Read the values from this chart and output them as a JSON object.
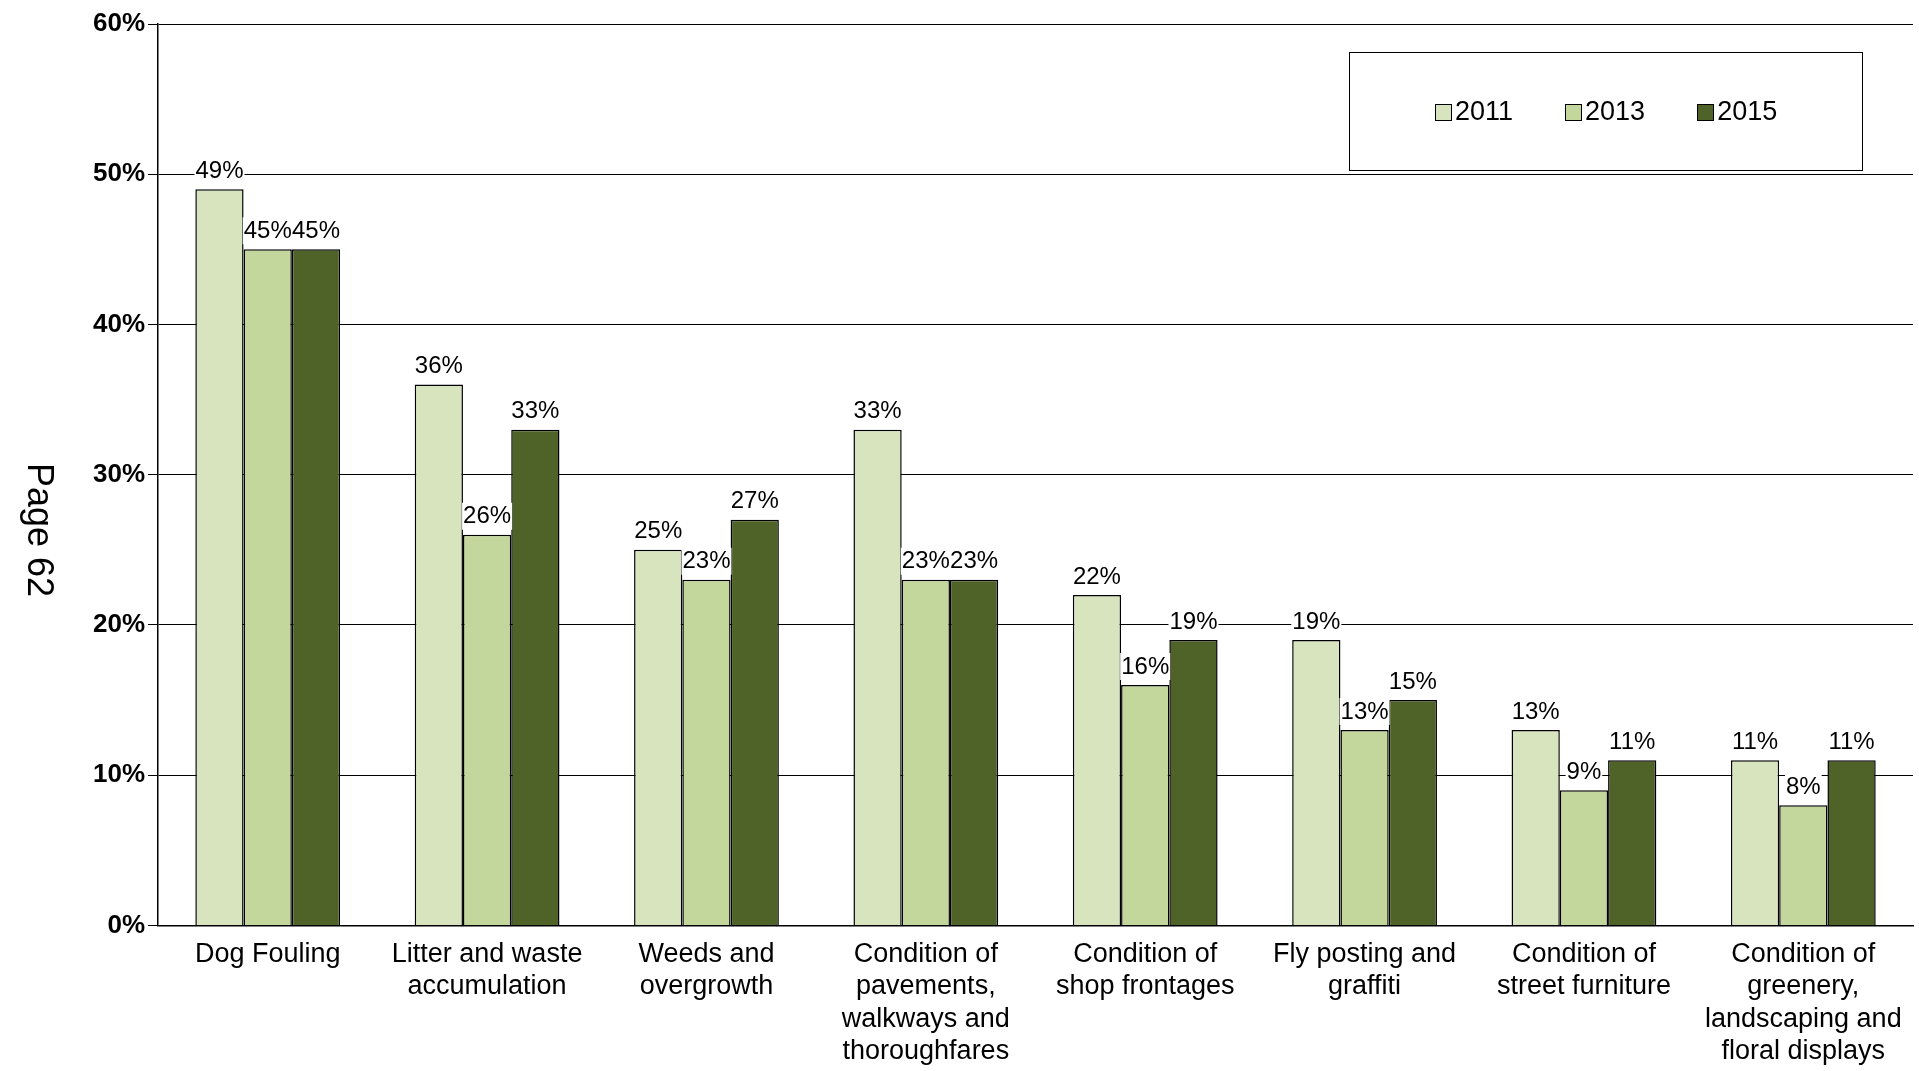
{
  "chart_data": {
    "type": "bar",
    "categories": [
      "Dog Fouling",
      "Litter and waste accumulation",
      "Weeds and overgrowth",
      "Condition of pavements, walkways and thoroughfares",
      "Condition of shop frontages",
      "Fly posting and graffiti",
      "Condition of street furniture",
      "Condition of greenery, landscaping and floral displays"
    ],
    "series": [
      {
        "name": "2011",
        "color": "#d7e4bd",
        "values": [
          49,
          36,
          25,
          33,
          22,
          19,
          13,
          11
        ],
        "value_labels": [
          "49%",
          "36%",
          "25%",
          "33%",
          "22%",
          "19%",
          "13%",
          "11%"
        ]
      },
      {
        "name": "2013",
        "color": "#c3d69b",
        "values": [
          45,
          26,
          23,
          23,
          16,
          13,
          9,
          8
        ],
        "value_labels": [
          "45%",
          "26%",
          "23%",
          "23%",
          "16%",
          "13%",
          "9%",
          "8%"
        ]
      },
      {
        "name": "2015",
        "color": "#4f6228",
        "values": [
          45,
          33,
          27,
          23,
          19,
          15,
          11,
          11
        ],
        "value_labels": [
          "45%",
          "33%",
          "27%",
          "23%",
          "19%",
          "15%",
          "11%",
          "11%"
        ]
      }
    ],
    "ylim": [
      0,
      60
    ],
    "yticks": [
      {
        "value": 0,
        "label": "0%"
      },
      {
        "value": 10,
        "label": "10%"
      },
      {
        "value": 20,
        "label": "20%"
      },
      {
        "value": 30,
        "label": "30%"
      },
      {
        "value": 40,
        "label": "40%"
      },
      {
        "value": 50,
        "label": "50%"
      },
      {
        "value": 60,
        "label": "60%"
      }
    ],
    "grid": "y",
    "legend": "top right",
    "annotations": [
      "Page 62"
    ]
  }
}
